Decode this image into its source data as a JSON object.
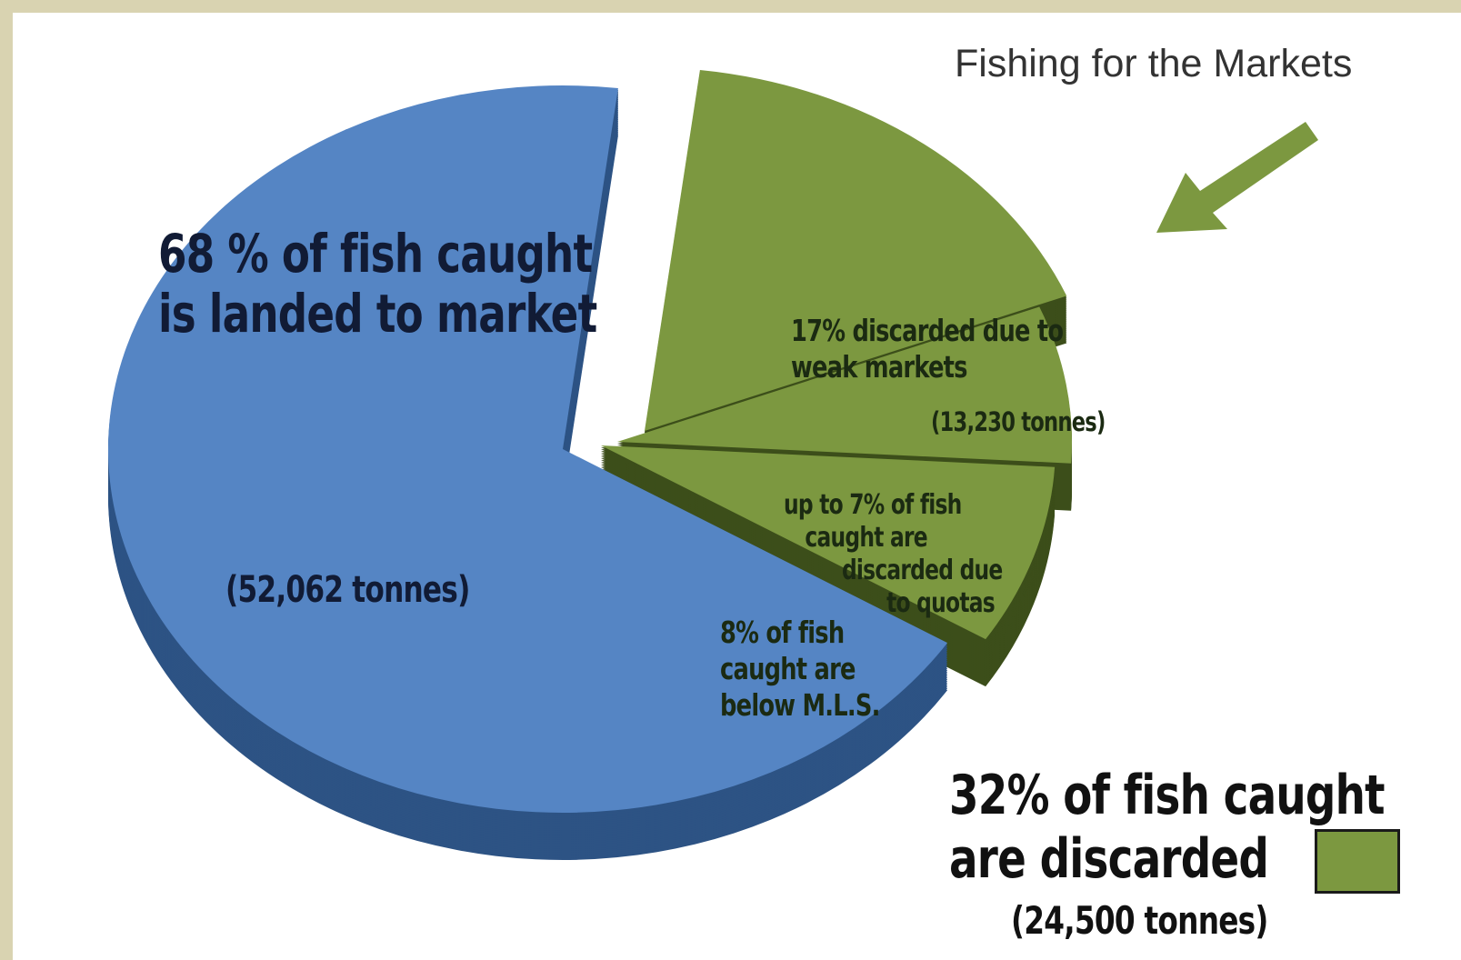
{
  "chart_data": {
    "type": "pie",
    "title": "Fishing for the Markets",
    "slices": [
      {
        "label": "68 % of fish caught is landed to market",
        "percent": 68,
        "tonnes": "(52,062 tonnes)",
        "color": "#5585c4"
      },
      {
        "label": "17% discarded due to weak markets",
        "percent": 17,
        "tonnes": "(13,230 tonnes)",
        "color": "#7c9840"
      },
      {
        "label": "up to 7% of fish caught are discarded due to quotas",
        "percent": 7,
        "color": "#7c9840"
      },
      {
        "label": "8% of fish caught are below M.L.S.",
        "percent": 8,
        "color": "#7c9840"
      }
    ],
    "summary": {
      "line1": "32% of fish caught",
      "line2": "are discarded",
      "tonnes": "(24,500 tonnes)",
      "color": "#7c9840"
    }
  },
  "labels": {
    "title": "Fishing for the Markets",
    "blue_line1": "68 % of fish caught",
    "blue_line2": "is landed to market",
    "blue_tonnes": "(52,062 tonnes)",
    "weak_line1": "17% discarded due to",
    "weak_line2": "weak markets",
    "weak_tonnes": "(13,230 tonnes)",
    "quota_line1": "up to 7% of fish",
    "quota_line2": "caught are",
    "quota_line3": "discarded due",
    "quota_line4": "to quotas",
    "mls_line1": "8% of fish",
    "mls_line2": "caught are",
    "mls_line3": "below M.L.S.",
    "summary_line1": "32% of fish caught",
    "summary_line2": "are discarded",
    "summary_tonnes": "(24,500 tonnes)"
  },
  "icons": {
    "arrow": "arrow-pointing-down-left-icon"
  }
}
